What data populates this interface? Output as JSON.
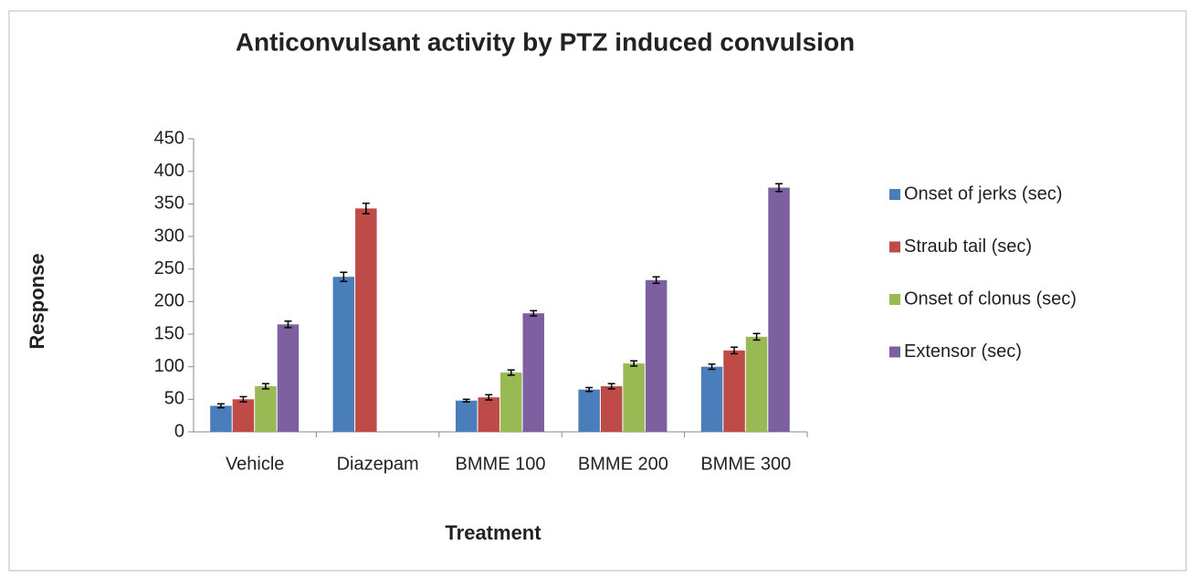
{
  "chart_data": {
    "type": "bar",
    "title": "Anticonvulsant activity by PTZ induced convulsion",
    "x_label": "Treatment",
    "y_label": "Response",
    "categories": [
      "Vehicle",
      "Diazepam",
      "BMME 100",
      "BMME 200",
      "BMME 300"
    ],
    "series": [
      {
        "name": "Onset of jerks (sec)",
        "color": "#4a7ebb",
        "values": [
          40,
          238,
          48,
          65,
          100
        ],
        "errors": [
          3,
          7,
          2,
          3,
          4
        ]
      },
      {
        "name": "Straub tail (sec)",
        "color": "#be4b48",
        "values": [
          50,
          343,
          53,
          70,
          125
        ],
        "errors": [
          4,
          8,
          4,
          4,
          5
        ]
      },
      {
        "name": "Onset of clonus (sec)",
        "color": "#98b954",
        "values": [
          70,
          null,
          91,
          105,
          146
        ],
        "errors": [
          4,
          null,
          4,
          4,
          5
        ]
      },
      {
        "name": "Extensor (sec)",
        "color": "#7d60a0",
        "values": [
          165,
          null,
          182,
          233,
          375
        ],
        "errors": [
          5,
          null,
          4,
          5,
          6
        ]
      }
    ],
    "ylim": [
      0,
      450
    ],
    "yticks": [
      0,
      50,
      100,
      150,
      200,
      250,
      300,
      350,
      400,
      450
    ],
    "grid": false,
    "legend": "right"
  }
}
